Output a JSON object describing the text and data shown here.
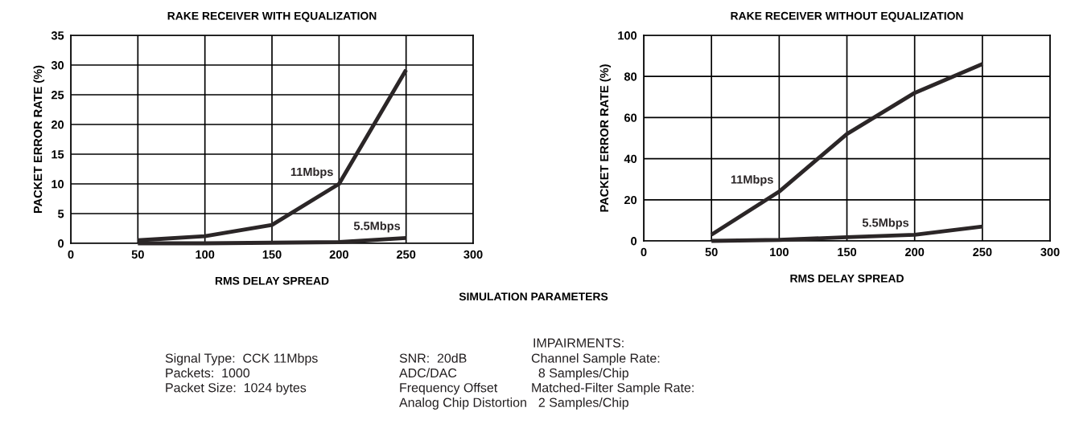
{
  "chart_data": [
    {
      "type": "line",
      "title": "RAKE RECEIVER WITH EQUALIZATION",
      "xlabel": "RMS DELAY SPREAD",
      "ylabel": "PACKET ERROR RATE (%)",
      "x": [
        50,
        100,
        150,
        200,
        250
      ],
      "xlim": [
        0,
        300
      ],
      "xticks": [
        0,
        50,
        100,
        150,
        200,
        250,
        300
      ],
      "ylim": [
        0,
        35
      ],
      "yticks": [
        0,
        5,
        10,
        15,
        20,
        25,
        30,
        35
      ],
      "grid": true,
      "legend": false,
      "marker": "none",
      "line_style": "solid",
      "series": [
        {
          "name": "11Mbps",
          "color": "#2b2627",
          "values": [
            0.5,
            1.2,
            3.1,
            10,
            29.2
          ]
        },
        {
          "name": "5.5Mbps",
          "color": "#2b2627",
          "values": [
            0,
            0,
            0.1,
            0.2,
            0.9
          ]
        }
      ]
    },
    {
      "type": "line",
      "title": "RAKE RECEIVER WITHOUT EQUALIZATION",
      "xlabel": "RMS DELAY SPREAD",
      "ylabel": "PACKET ERROR RATE (%)",
      "x": [
        50,
        100,
        150,
        200,
        250
      ],
      "xlim": [
        0,
        300
      ],
      "xticks": [
        0,
        50,
        100,
        150,
        200,
        250,
        300
      ],
      "ylim": [
        0,
        100
      ],
      "yticks": [
        0,
        20,
        40,
        60,
        80,
        100
      ],
      "grid": true,
      "legend": false,
      "marker": "none",
      "line_style": "solid",
      "series": [
        {
          "name": "11Mbps",
          "color": "#2b2627",
          "values": [
            3,
            24,
            52,
            72,
            86
          ]
        },
        {
          "name": "5.5Mbps",
          "color": "#2b2627",
          "values": [
            0,
            0.5,
            1.8,
            3,
            7
          ]
        }
      ]
    },
    {
      "type": "other",
      "title": "SIMULATION PARAMETERS",
      "annotations": [
        "Signal Type:  CCK 11Mbps\nPackets:  1000\nPacket Size:  1024 bytes",
        "SNR:  20dB\nADC/DAC\nFrequency Offset\nAnalog Chip Distortion",
        "IMPAIRMENTS:",
        "Channel Sample Rate:\n  8 Samples/Chip\nMatched-Filter Sample Rate:\n  2 Samples/Chip"
      ]
    }
  ]
}
